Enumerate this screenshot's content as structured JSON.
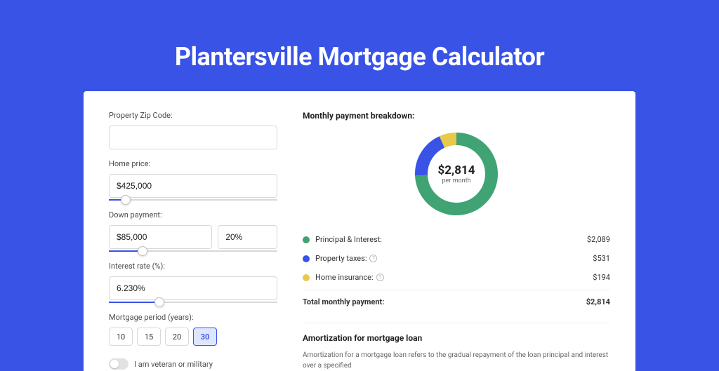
{
  "title": "Plantersville Mortgage Calculator",
  "colors": {
    "brand": "#3853e6",
    "principal": "#3fa373",
    "taxes": "#3853e6",
    "insurance": "#e8c94a",
    "card_bg": "#ffffff",
    "text_primary": "#222222",
    "text_secondary": "#4a4a4a",
    "text_muted": "#666666",
    "border": "#d8d8d8"
  },
  "form": {
    "zip": {
      "label": "Property Zip Code:",
      "value": ""
    },
    "home_price": {
      "label": "Home price:",
      "value": "$425,000",
      "slider_pct": 10
    },
    "down_payment": {
      "label": "Down payment:",
      "value": "$85,000",
      "pct_value": "20%",
      "slider_pct": 20
    },
    "interest_rate": {
      "label": "Interest rate (%):",
      "value": "6.230%",
      "slider_pct": 30
    },
    "period": {
      "label": "Mortgage period (years):",
      "options": [
        "10",
        "15",
        "20",
        "30"
      ],
      "selected": "30"
    },
    "veteran": {
      "label": "I am veteran or military",
      "checked": false
    }
  },
  "breakdown": {
    "title": "Monthly payment breakdown:",
    "donut": {
      "amount": "$2,814",
      "sub": "per month",
      "segments": [
        {
          "key": "principal",
          "value": 2089,
          "color": "#3fa373"
        },
        {
          "key": "taxes",
          "value": 531,
          "color": "#3853e6"
        },
        {
          "key": "insurance",
          "value": 194,
          "color": "#e8c94a"
        }
      ],
      "total_value": 2814
    },
    "rows": [
      {
        "label": "Principal & Interest:",
        "value": "$2,089",
        "color": "#3fa373",
        "info": false
      },
      {
        "label": "Property taxes:",
        "value": "$531",
        "color": "#3853e6",
        "info": true
      },
      {
        "label": "Home insurance:",
        "value": "$194",
        "color": "#e8c94a",
        "info": true
      }
    ],
    "total": {
      "label": "Total monthly payment:",
      "value": "$2,814"
    }
  },
  "amortization": {
    "title": "Amortization for mortgage loan",
    "text": "Amortization for a mortgage loan refers to the gradual repayment of the loan principal and interest over a specified"
  }
}
